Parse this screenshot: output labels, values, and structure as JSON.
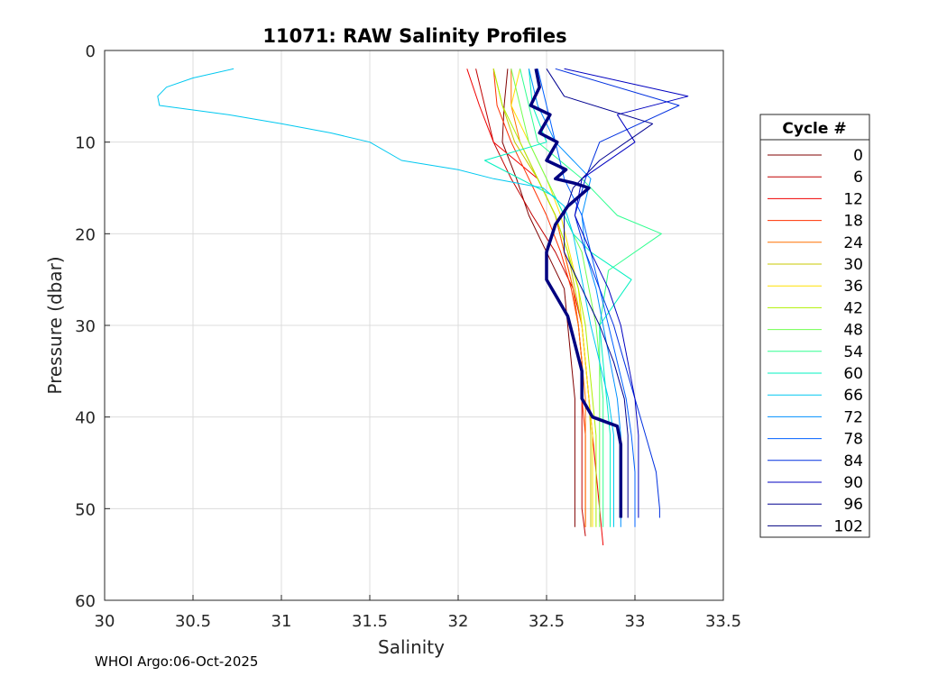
{
  "footer": "WHOI Argo:06-Oct-2025",
  "chart_data": {
    "type": "line",
    "title": "11071: RAW Salinity Profiles",
    "xlabel": "Salinity",
    "ylabel": "Pressure (dbar)",
    "xlim": [
      30,
      33.5
    ],
    "ylim": [
      0,
      60
    ],
    "y_reversed": true,
    "grid": true,
    "xticks": [
      30,
      30.5,
      31,
      31.5,
      32,
      32.5,
      33,
      33.5
    ],
    "xtick_labels": [
      "30",
      "30.5",
      "31",
      "31.5",
      "32",
      "32.5",
      "33",
      "33.5"
    ],
    "yticks": [
      0,
      10,
      20,
      30,
      40,
      50,
      60
    ],
    "ytick_labels": [
      "0",
      "10",
      "20",
      "30",
      "40",
      "50",
      "60"
    ],
    "legend": {
      "title": "Cycle #",
      "placement": "outside-right",
      "entries": [
        "0",
        "6",
        "12",
        "18",
        "24",
        "30",
        "36",
        "42",
        "48",
        "54",
        "60",
        "66",
        "72",
        "78",
        "84",
        "90",
        "96",
        "102"
      ],
      "colors": [
        "#800000",
        "#c00000",
        "#f00000",
        "#ff3000",
        "#ff7000",
        "#c8c800",
        "#ffe000",
        "#b0f000",
        "#70ff50",
        "#30ff90",
        "#00f0c0",
        "#00c8f0",
        "#0090ff",
        "#0060ff",
        "#0030e0",
        "#0000c0",
        "#000090",
        "#000080"
      ]
    },
    "series": [
      {
        "name": "0",
        "color": "#800000",
        "salinity": [
          32.28,
          32.26,
          32.25,
          32.33,
          32.4,
          32.5,
          32.6,
          32.62,
          32.64,
          32.66,
          32.66,
          32.66,
          32.66,
          32.66
        ],
        "pressure": [
          2,
          6,
          10,
          14,
          18,
          22,
          26,
          30,
          34,
          38,
          42,
          46,
          50,
          52
        ]
      },
      {
        "name": "6",
        "color": "#c00000",
        "salinity": [
          32.1,
          32.15,
          32.2,
          32.3,
          32.42,
          32.55,
          32.65,
          32.68,
          32.7,
          32.7,
          32.7,
          32.7,
          32.7,
          32.72
        ],
        "pressure": [
          2,
          6,
          10,
          14,
          18,
          22,
          26,
          30,
          34,
          38,
          42,
          46,
          50,
          53
        ]
      },
      {
        "name": "12",
        "color": "#f00000",
        "salinity": [
          32.05,
          32.12,
          32.2,
          32.45,
          32.55,
          32.6,
          32.65,
          32.7,
          32.72,
          32.74,
          32.76,
          32.78,
          32.8,
          32.82
        ],
        "pressure": [
          2,
          6,
          10,
          14,
          18,
          22,
          26,
          30,
          34,
          38,
          42,
          46,
          50,
          54
        ]
      },
      {
        "name": "18",
        "color": "#ff3000",
        "salinity": [
          32.2,
          32.22,
          32.3,
          32.4,
          32.5,
          32.58,
          32.64,
          32.68,
          32.7,
          32.7,
          32.72,
          32.72,
          32.72,
          32.72
        ],
        "pressure": [
          2,
          6,
          10,
          14,
          18,
          22,
          26,
          30,
          34,
          38,
          42,
          46,
          50,
          52
        ]
      },
      {
        "name": "24",
        "color": "#ff7000",
        "salinity": [
          32.3,
          32.3,
          32.35,
          32.45,
          32.55,
          32.6,
          32.65,
          32.68,
          32.7,
          32.72,
          32.72,
          32.72,
          32.72,
          32.72
        ],
        "pressure": [
          2,
          6,
          10,
          14,
          18,
          22,
          26,
          30,
          34,
          38,
          42,
          46,
          50,
          52
        ]
      },
      {
        "name": "30",
        "color": "#c8c800",
        "salinity": [
          32.2,
          32.25,
          32.32,
          32.45,
          32.55,
          32.62,
          32.66,
          32.7,
          32.72,
          32.74,
          32.75,
          32.75,
          32.75,
          32.75
        ],
        "pressure": [
          2,
          6,
          10,
          14,
          18,
          22,
          26,
          30,
          34,
          38,
          42,
          46,
          50,
          52
        ]
      },
      {
        "name": "36",
        "color": "#ffe000",
        "salinity": [
          32.35,
          32.3,
          32.4,
          32.5,
          32.58,
          32.63,
          32.68,
          32.7,
          32.72,
          32.74,
          32.76,
          32.76,
          32.76,
          32.76
        ],
        "pressure": [
          2,
          6,
          10,
          14,
          18,
          22,
          26,
          30,
          34,
          38,
          42,
          46,
          50,
          52
        ]
      },
      {
        "name": "42",
        "color": "#b0f000",
        "salinity": [
          32.2,
          32.25,
          32.35,
          32.45,
          32.55,
          32.62,
          32.68,
          32.72,
          32.74,
          32.76,
          32.78,
          32.78,
          32.78,
          32.78
        ],
        "pressure": [
          2,
          6,
          10,
          14,
          18,
          22,
          26,
          30,
          34,
          38,
          42,
          46,
          50,
          52
        ]
      },
      {
        "name": "48",
        "color": "#70ff50",
        "salinity": [
          32.3,
          32.35,
          32.4,
          32.5,
          32.6,
          32.7,
          32.74,
          32.78,
          32.8,
          32.8,
          32.8,
          32.8,
          32.8,
          32.8
        ],
        "pressure": [
          2,
          6,
          10,
          14,
          18,
          22,
          26,
          30,
          34,
          38,
          42,
          46,
          50,
          52
        ]
      },
      {
        "name": "54",
        "color": "#30ff90",
        "salinity": [
          32.35,
          32.4,
          32.45,
          32.7,
          32.9,
          33.15,
          32.85,
          32.8,
          32.8,
          32.82,
          32.82,
          32.82,
          32.82,
          32.82
        ],
        "pressure": [
          2,
          6,
          10,
          14,
          18,
          20,
          24,
          30,
          34,
          38,
          42,
          46,
          50,
          52
        ]
      },
      {
        "name": "60",
        "color": "#00f0c0",
        "salinity": [
          32.4,
          32.42,
          32.5,
          32.15,
          32.55,
          32.65,
          32.75,
          32.98,
          32.8,
          32.82,
          32.84,
          32.86,
          32.86,
          32.86
        ],
        "pressure": [
          2,
          6,
          10,
          12,
          16,
          20,
          22,
          25,
          30,
          34,
          38,
          42,
          48,
          52
        ]
      },
      {
        "name": "66",
        "color": "#00c8f0",
        "salinity": [
          30.73,
          30.5,
          30.35,
          30.3,
          30.31,
          30.7,
          31.0,
          31.28,
          31.5,
          31.68,
          32.0,
          32.2,
          32.48,
          32.6,
          32.65,
          32.7,
          32.75,
          32.8,
          32.85,
          32.88,
          32.88,
          32.88,
          32.88
        ],
        "pressure": [
          2,
          3,
          4,
          5,
          6,
          7,
          8,
          9,
          10,
          12,
          13,
          14,
          15,
          17,
          20,
          25,
          30,
          34,
          38,
          42,
          46,
          50,
          52
        ]
      },
      {
        "name": "72",
        "color": "#0090ff",
        "salinity": [
          32.4,
          32.45,
          32.55,
          32.75,
          32.7,
          32.72,
          32.78,
          32.82,
          32.86,
          32.9,
          32.92,
          32.92,
          32.92,
          32.92
        ],
        "pressure": [
          2,
          6,
          10,
          14,
          18,
          22,
          26,
          30,
          34,
          38,
          42,
          46,
          50,
          52
        ]
      },
      {
        "name": "78",
        "color": "#0060ff",
        "salinity": [
          32.45,
          32.5,
          32.55,
          32.6,
          32.7,
          32.75,
          32.8,
          32.85,
          32.9,
          32.95,
          32.98,
          33.0,
          33.0,
          33.0
        ],
        "pressure": [
          2,
          6,
          10,
          14,
          18,
          22,
          26,
          30,
          34,
          38,
          42,
          46,
          50,
          52
        ]
      },
      {
        "name": "84",
        "color": "#0030e0",
        "salinity": [
          32.55,
          33.25,
          32.8,
          32.72,
          32.66,
          32.72,
          32.8,
          32.88,
          32.94,
          33.0,
          33.06,
          33.12,
          33.14,
          33.14
        ],
        "pressure": [
          2,
          6,
          10,
          14,
          18,
          22,
          26,
          30,
          34,
          38,
          42,
          46,
          50,
          51
        ]
      },
      {
        "name": "90",
        "color": "#0000c0",
        "salinity": [
          32.6,
          33.3,
          32.9,
          33.0,
          32.7,
          32.66,
          32.75,
          32.85,
          32.92,
          32.96,
          33.0,
          33.02,
          33.02,
          33.02
        ],
        "pressure": [
          2,
          5,
          7,
          10,
          14,
          18,
          22,
          26,
          30,
          34,
          38,
          42,
          46,
          51
        ]
      },
      {
        "name": "96",
        "color": "#000090",
        "salinity": [
          32.5,
          32.6,
          33.1,
          32.8,
          32.65,
          32.6,
          32.6,
          32.7,
          32.8,
          32.88,
          32.94,
          32.96,
          32.96,
          32.96
        ],
        "pressure": [
          2,
          5,
          8,
          12,
          15,
          18,
          22,
          26,
          30,
          34,
          38,
          42,
          46,
          51
        ]
      },
      {
        "name": "102",
        "color": "#000080",
        "salinity": [
          32.44,
          32.46,
          32.41,
          32.52,
          32.46,
          32.56,
          32.5,
          32.61,
          32.55,
          32.66,
          32.74,
          32.62,
          32.55,
          32.5,
          32.5,
          32.56,
          32.62,
          32.66,
          32.7,
          32.7,
          32.76,
          32.9,
          32.92,
          32.92,
          32.92
        ],
        "pressure": [
          2,
          4,
          6,
          7,
          9,
          10,
          12,
          13,
          14,
          14.5,
          15,
          17,
          19,
          22,
          25,
          27,
          29,
          32,
          35,
          38,
          40,
          41,
          43,
          47,
          51
        ],
        "bold": true
      }
    ]
  }
}
